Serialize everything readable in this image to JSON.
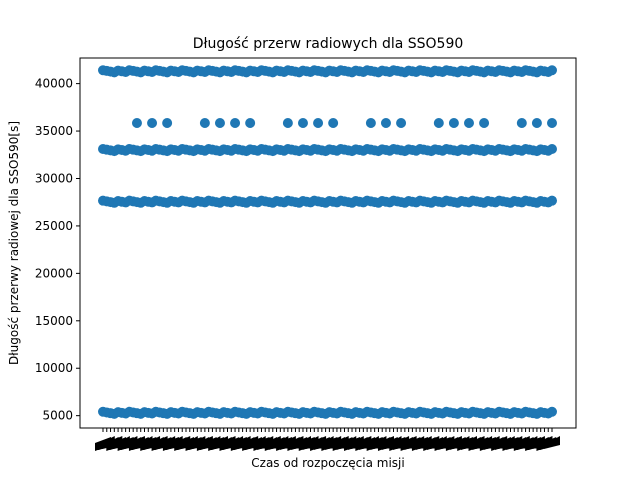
{
  "chart_data": {
    "type": "scatter",
    "title": "Długość przerw radiowych dla SSO590",
    "xlabel": "Czas od rozpoczęcia misji",
    "ylabel": "Długość przerwy radiowej dla SSO590[s]",
    "ylim": [
      3700,
      42700
    ],
    "yticks": [
      5000,
      10000,
      15000,
      20000,
      25000,
      30000,
      35000,
      40000
    ],
    "ytick_labels": [
      "5000",
      "10000",
      "15000",
      "20000",
      "25000",
      "30000",
      "35000",
      "40000"
    ],
    "x_note_tick_labels_illegible": true,
    "grid": false,
    "legend": "none",
    "color": "#1f77b4",
    "x_count": 120,
    "series": [
      {
        "levels": [
          {
            "y": 41300,
            "count": 120
          },
          {
            "y": 33000,
            "count": 120
          },
          {
            "y": 27550,
            "count": 120
          },
          {
            "y": 5300,
            "count": 120
          }
        ]
      },
      {
        "x_groups_index": [
          [
            9,
            13,
            17
          ],
          [
            27,
            31,
            35,
            39
          ],
          [
            49,
            53,
            57,
            61
          ],
          [
            71,
            75,
            79
          ],
          [
            89,
            93,
            97,
            101
          ],
          [
            111,
            115,
            119
          ]
        ],
        "y": 35850
      }
    ]
  }
}
